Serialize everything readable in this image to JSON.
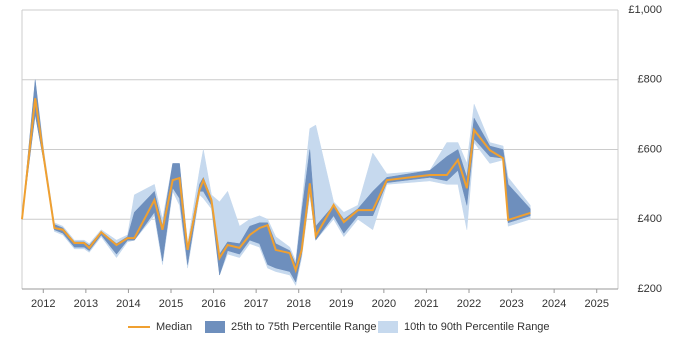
{
  "chart_data": {
    "type": "band-line",
    "x": [
      2011.5,
      2011.81,
      2012.02,
      2012.26,
      2012.46,
      2012.73,
      2012.96,
      2013.08,
      2013.36,
      2013.72,
      2013.98,
      2014.14,
      2014.61,
      2014.8,
      2015.04,
      2015.2,
      2015.39,
      2015.67,
      2015.76,
      2015.95,
      2016.14,
      2016.33,
      2016.61,
      2016.85,
      2017.08,
      2017.27,
      2017.46,
      2017.79,
      2017.93,
      2018.07,
      2018.26,
      2018.4,
      2018.82,
      2019.06,
      2019.39,
      2019.74,
      2020.07,
      2021.08,
      2021.48,
      2021.74,
      2021.95,
      2022.12,
      2022.49,
      2022.8,
      2022.92,
      2023.44
    ],
    "series": [
      {
        "name": "Median",
        "color": "#f0a030",
        "kind": "line",
        "values": [
          400,
          747,
          570,
          375,
          370,
          332,
          332,
          318,
          363,
          326,
          346,
          346,
          455,
          370,
          512,
          518,
          312,
          484,
          512,
          455,
          289,
          326,
          318,
          355,
          375,
          383,
          312,
          303,
          254,
          312,
          503,
          352,
          441,
          392,
          426,
          426,
          512,
          527,
          527,
          570,
          489,
          656,
          598,
          575,
          398,
          418
        ]
      },
      {
        "name": "25th to 75th Percentile Range",
        "color": "#6e8fbd",
        "kind": "band",
        "lower": [
          400,
          700,
          560,
          370,
          360,
          320,
          320,
          310,
          355,
          300,
          340,
          340,
          420,
          280,
          490,
          460,
          270,
          480,
          480,
          440,
          240,
          310,
          300,
          340,
          330,
          270,
          260,
          250,
          220,
          300,
          480,
          340,
          410,
          360,
          410,
          410,
          505,
          520,
          510,
          540,
          440,
          630,
          580,
          575,
          390,
          410
        ],
        "upper": [
          400,
          800,
          580,
          385,
          375,
          335,
          335,
          325,
          365,
          330,
          350,
          420,
          480,
          380,
          560,
          560,
          320,
          500,
          520,
          460,
          300,
          335,
          330,
          380,
          390,
          390,
          330,
          310,
          270,
          420,
          600,
          380,
          440,
          400,
          430,
          480,
          520,
          540,
          580,
          600,
          520,
          690,
          610,
          600,
          500,
          430
        ]
      },
      {
        "name": "10th to 90th Percentile Range",
        "color": "#c6d9ee",
        "kind": "band",
        "lower": [
          400,
          700,
          560,
          365,
          355,
          315,
          315,
          305,
          350,
          290,
          335,
          340,
          410,
          270,
          480,
          440,
          260,
          470,
          460,
          430,
          240,
          300,
          290,
          330,
          320,
          260,
          250,
          240,
          210,
          290,
          470,
          340,
          400,
          350,
          400,
          370,
          500,
          510,
          500,
          500,
          370,
          620,
          560,
          570,
          380,
          400
        ],
        "upper": [
          400,
          800,
          590,
          390,
          380,
          340,
          340,
          330,
          370,
          340,
          355,
          470,
          500,
          400,
          560,
          560,
          330,
          540,
          600,
          470,
          450,
          480,
          380,
          400,
          410,
          400,
          350,
          320,
          280,
          440,
          660,
          670,
          450,
          420,
          440,
          590,
          530,
          540,
          620,
          620,
          560,
          730,
          620,
          610,
          520,
          440
        ]
      }
    ],
    "xlim": [
      2011.5,
      2025.5
    ],
    "xticks": [
      2012,
      2013,
      2014,
      2015,
      2016,
      2017,
      2018,
      2019,
      2020,
      2021,
      2022,
      2023,
      2024,
      2025
    ],
    "ylim": [
      200,
      1000
    ],
    "yticks": [
      {
        "value": 200,
        "label": "£200"
      },
      {
        "value": 400,
        "label": "£400"
      },
      {
        "value": 600,
        "label": "£600"
      },
      {
        "value": 800,
        "label": "£800"
      },
      {
        "value": 1000,
        "label": "£1,000"
      }
    ],
    "grid": true
  }
}
